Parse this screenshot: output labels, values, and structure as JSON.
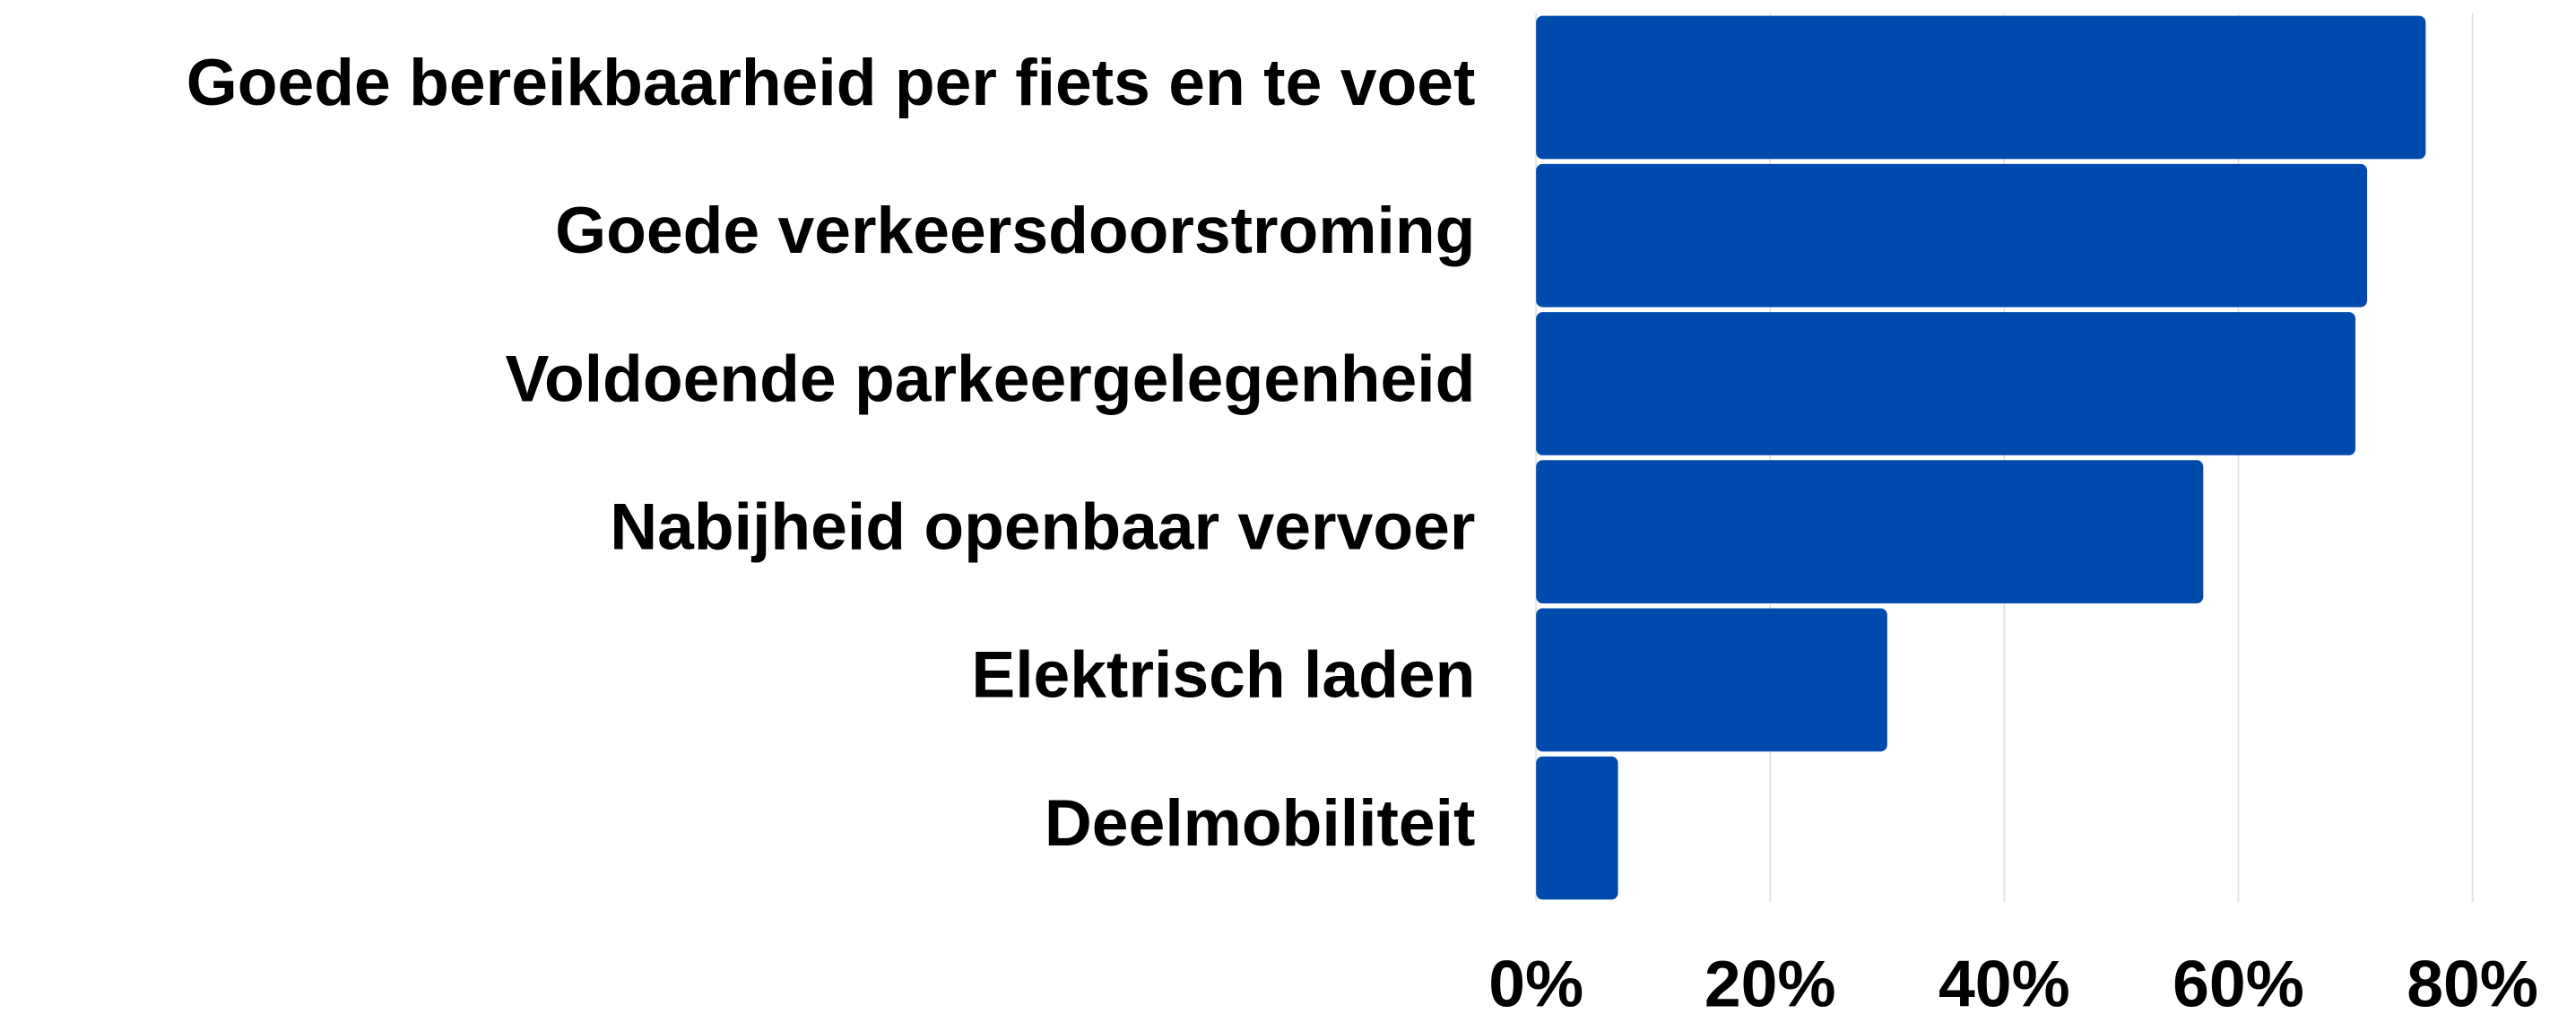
{
  "chart_data": {
    "type": "bar",
    "orientation": "horizontal",
    "categories": [
      "Goede bereikbaarheid per fiets en te voet",
      "Goede verkeersdoorstroming",
      "Voldoende parkeergelegenheid",
      "Nabijheid openbaar vervoer",
      "Elektrisch laden",
      "Deelmobiliteit"
    ],
    "values": [
      76,
      71,
      70,
      57,
      30,
      7
    ],
    "color": "#004aad",
    "xlim": [
      0,
      80
    ],
    "xticks": [
      {
        "value": 0,
        "label": "0%"
      },
      {
        "value": 20,
        "label": "20%"
      },
      {
        "value": 40,
        "label": "40%"
      },
      {
        "value": 60,
        "label": "60%"
      },
      {
        "value": 80,
        "label": "80%"
      }
    ],
    "grid": true
  }
}
